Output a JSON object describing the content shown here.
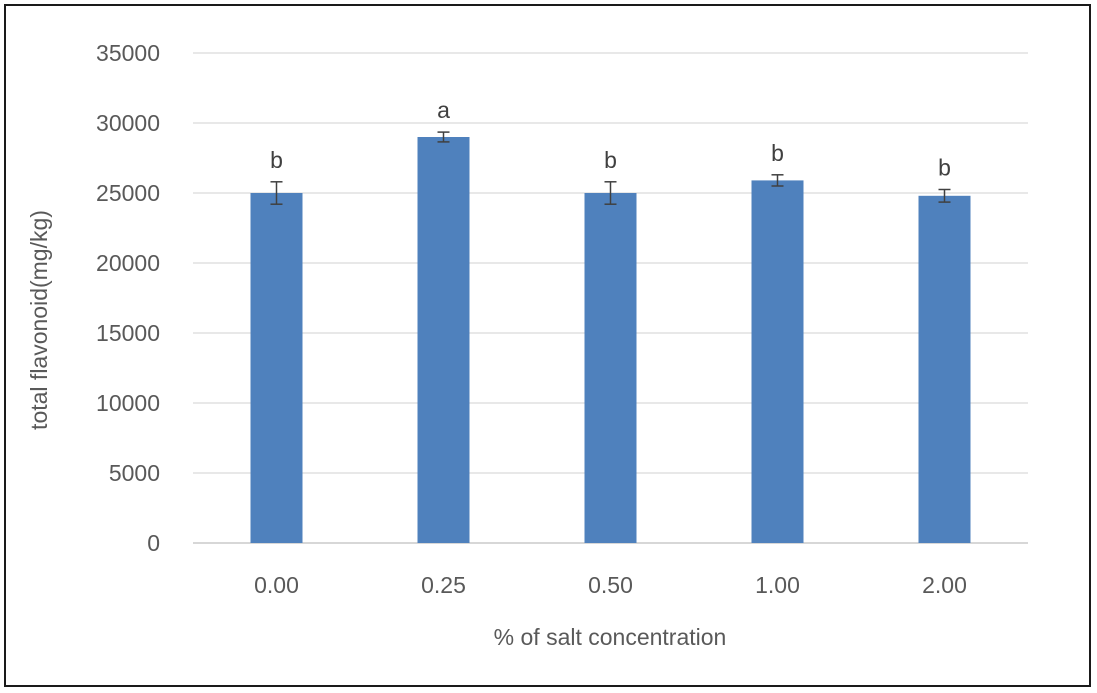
{
  "chart_data": {
    "type": "bar",
    "title": "",
    "xlabel": "% of salt concentration",
    "ylabel": "total flavonoid(mg/kg)",
    "ylim": [
      0,
      35000
    ],
    "yticks": [
      0,
      5000,
      10000,
      15000,
      20000,
      25000,
      30000,
      35000
    ],
    "ytick_labels": [
      "0",
      "5000",
      "10000",
      "15000",
      "20000",
      "25000",
      "30000",
      "35000"
    ],
    "grid": true,
    "legend": "none",
    "bar_color": "#4f81bd",
    "categories": [
      "0.00",
      "0.25",
      "0.50",
      "1.00",
      "2.00"
    ],
    "values": [
      25000,
      29000,
      25000,
      25900,
      24800
    ],
    "errors": [
      800,
      350,
      800,
      400,
      450
    ],
    "significance_letters": [
      "b",
      "a",
      "b",
      "b",
      "b"
    ]
  }
}
